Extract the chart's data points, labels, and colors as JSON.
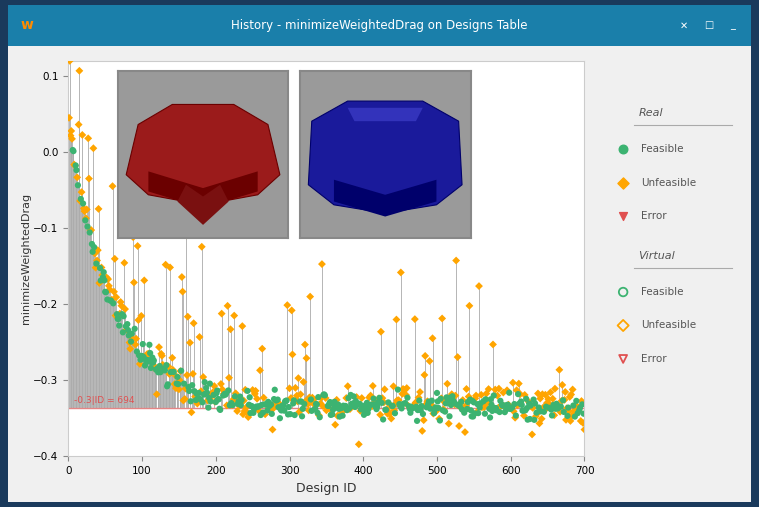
{
  "title": "History - minimizeWeightedDrag on Designs Table",
  "xlabel": "Design ID",
  "ylabel": "minimizeWeightedDrag",
  "xlim": [
    0,
    700
  ],
  "ylim": [
    -0.4,
    0.12
  ],
  "yticks": [
    0.1,
    0.0,
    -0.1,
    -0.2,
    -0.3,
    -0.4
  ],
  "xticks": [
    0,
    100,
    200,
    300,
    400,
    500,
    600,
    700
  ],
  "best_line_y": -0.336,
  "best_label": "-0.3|ID = 694",
  "feasible_color": "#3cb371",
  "unfeasible_color": "#ffa500",
  "error_color": "#e05050",
  "stem_color": "#aaaaaa",
  "window_title_color": "#1a7faa",
  "window_bg": "#f0f0f0",
  "outer_bg": "#1a3a5c"
}
